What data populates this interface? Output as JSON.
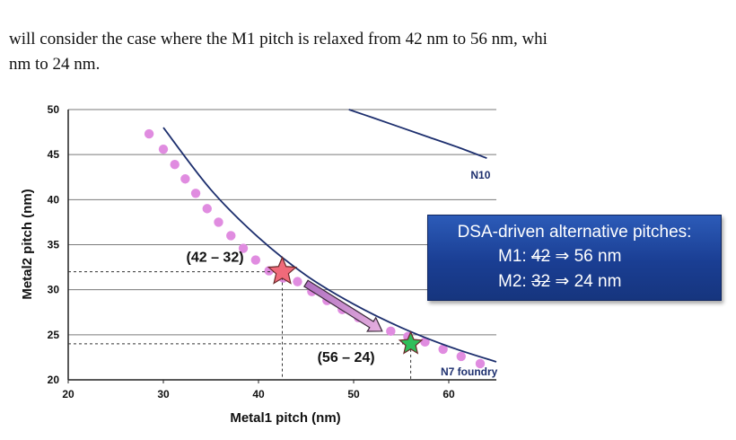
{
  "text": {
    "line1": "will consider the case where the M1 pitch is relaxed from 42 nm to 56 nm, whi",
    "line2": "nm to 24 nm."
  },
  "chart_data": {
    "type": "scatter",
    "xlabel": "Metal1 pitch (nm)",
    "ylabel": "Metal2 pitch (nm)",
    "xlim": [
      20,
      65
    ],
    "ylim": [
      20,
      50
    ],
    "x_ticks": [
      "20",
      "30",
      "40",
      "50",
      "60"
    ],
    "y_ticks": [
      "20",
      "25",
      "30",
      "35",
      "40",
      "45",
      "50"
    ],
    "grid": "horizontal",
    "series": [
      {
        "kind": "dots",
        "color": "#e08ce0",
        "x": [
          28.5,
          30,
          31.2,
          32.3,
          33.4,
          34.6,
          35.8,
          37.1,
          38.4,
          39.7,
          41.1,
          42.6,
          44.1,
          45.6,
          47.2,
          48.8,
          50.5,
          52.2,
          53.9,
          55.7,
          57.5,
          59.4,
          61.3,
          63.3
        ],
        "y": [
          47.3,
          45.6,
          43.9,
          42.3,
          40.7,
          39,
          37.5,
          36,
          34.6,
          33.3,
          32.1,
          31.3,
          30.9,
          29.8,
          28.8,
          27.8,
          26.9,
          26.1,
          25.4,
          24.8,
          24.2,
          23.4,
          22.6,
          21.8
        ]
      },
      {
        "kind": "curve",
        "name": "N7 foundry",
        "color": "#1d2f6e",
        "x": [
          30,
          35,
          40,
          45,
          50,
          55,
          60,
          65
        ],
        "y": [
          48,
          41.1,
          35.8,
          31.6,
          28.4,
          25.8,
          23.7,
          22
        ]
      },
      {
        "kind": "curve",
        "name": "N10",
        "color": "#1d2f6e",
        "x": [
          49.5,
          52,
          55,
          58,
          61,
          64
        ],
        "y": [
          50,
          49.1,
          48.0,
          46.9,
          45.8,
          44.6
        ]
      }
    ],
    "points": [
      {
        "label": "(42 – 32)",
        "x": 42.5,
        "y": 32,
        "color": "#f06a7a"
      },
      {
        "label": "(56 – 24)",
        "x": 56,
        "y": 24,
        "color": "#2fbf5a"
      }
    ],
    "arrow": {
      "from": [
        45,
        30.7
      ],
      "to": [
        53,
        25.4
      ]
    }
  },
  "callout": {
    "title": "DSA-driven alternative pitches:",
    "m1_label": "M1:",
    "m1_old": "42",
    "m1_new": "⇒ 56 nm",
    "m2_label": "M2:",
    "m2_old": "32",
    "m2_new": "⇒ 24 nm"
  }
}
